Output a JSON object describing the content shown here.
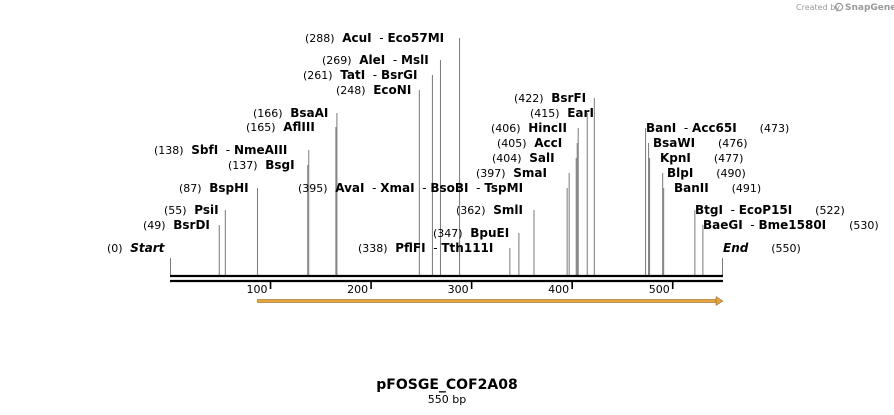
{
  "credit": {
    "text": "Created by",
    "brand": "SnapGene"
  },
  "plasmid": {
    "name": "pFOSGE_COF2A08",
    "length_label": "550 bp"
  },
  "scale": {
    "length": 550,
    "ticks": [
      100,
      200,
      300,
      400,
      500
    ]
  },
  "feature": {
    "name": "orf-arrow",
    "start": 87,
    "end": 550,
    "color": "#e8a33a"
  },
  "sites": [
    {
      "pos": 0,
      "pos_label": "(0)",
      "names": [
        "Start"
      ],
      "terminal": true
    },
    {
      "pos": 49,
      "pos_label": "(49)",
      "names": [
        "BsrDI"
      ]
    },
    {
      "pos": 55,
      "pos_label": "(55)",
      "names": [
        "PsiI"
      ]
    },
    {
      "pos": 87,
      "pos_label": "(87)",
      "names": [
        "BspHI"
      ]
    },
    {
      "pos": 137,
      "pos_label": "(137)",
      "names": [
        "BsgI"
      ]
    },
    {
      "pos": 138,
      "pos_label": "(138)",
      "names": [
        "SbfI",
        "NmeAIII"
      ]
    },
    {
      "pos": 165,
      "pos_label": "(165)",
      "names": [
        "AflIII"
      ]
    },
    {
      "pos": 166,
      "pos_label": "(166)",
      "names": [
        "BsaAI"
      ]
    },
    {
      "pos": 248,
      "pos_label": "(248)",
      "names": [
        "EcoNI"
      ]
    },
    {
      "pos": 261,
      "pos_label": "(261)",
      "names": [
        "TatI",
        "BsrGI"
      ]
    },
    {
      "pos": 269,
      "pos_label": "(269)",
      "names": [
        "AleI",
        "MslI"
      ]
    },
    {
      "pos": 288,
      "pos_label": "(288)",
      "names": [
        "AcuI",
        "Eco57MI"
      ]
    },
    {
      "pos": 338,
      "pos_label": "(338)",
      "names": [
        "PflFI",
        "Tth111I"
      ]
    },
    {
      "pos": 347,
      "pos_label": "(347)",
      "names": [
        "BpuEI"
      ]
    },
    {
      "pos": 362,
      "pos_label": "(362)",
      "names": [
        "SmlI"
      ]
    },
    {
      "pos": 395,
      "pos_label": "(395)",
      "names": [
        "AvaI",
        "XmaI",
        "BsoBI",
        "TspMI"
      ]
    },
    {
      "pos": 397,
      "pos_label": "(397)",
      "names": [
        "SmaI"
      ]
    },
    {
      "pos": 404,
      "pos_label": "(404)",
      "names": [
        "SalI"
      ]
    },
    {
      "pos": 405,
      "pos_label": "(405)",
      "names": [
        "AccI"
      ]
    },
    {
      "pos": 406,
      "pos_label": "(406)",
      "names": [
        "HincII"
      ]
    },
    {
      "pos": 415,
      "pos_label": "(415)",
      "names": [
        "EarI"
      ]
    },
    {
      "pos": 422,
      "pos_label": "(422)",
      "names": [
        "BsrFI"
      ]
    },
    {
      "pos": 473,
      "pos_label": "(473)",
      "names": [
        "BanI",
        "Acc65I"
      ]
    },
    {
      "pos": 476,
      "pos_label": "(476)",
      "names": [
        "BsaWI"
      ]
    },
    {
      "pos": 477,
      "pos_label": "(477)",
      "names": [
        "KpnI"
      ]
    },
    {
      "pos": 490,
      "pos_label": "(490)",
      "names": [
        "BlpI"
      ]
    },
    {
      "pos": 491,
      "pos_label": "(491)",
      "names": [
        "BanII"
      ]
    },
    {
      "pos": 522,
      "pos_label": "(522)",
      "names": [
        "BtgI",
        "EcoP15I"
      ]
    },
    {
      "pos": 530,
      "pos_label": "(530)",
      "names": [
        "BaeGI",
        "Bme1580I"
      ]
    },
    {
      "pos": 550,
      "pos_label": "(550)",
      "names": [
        "End"
      ],
      "terminal": true
    }
  ]
}
